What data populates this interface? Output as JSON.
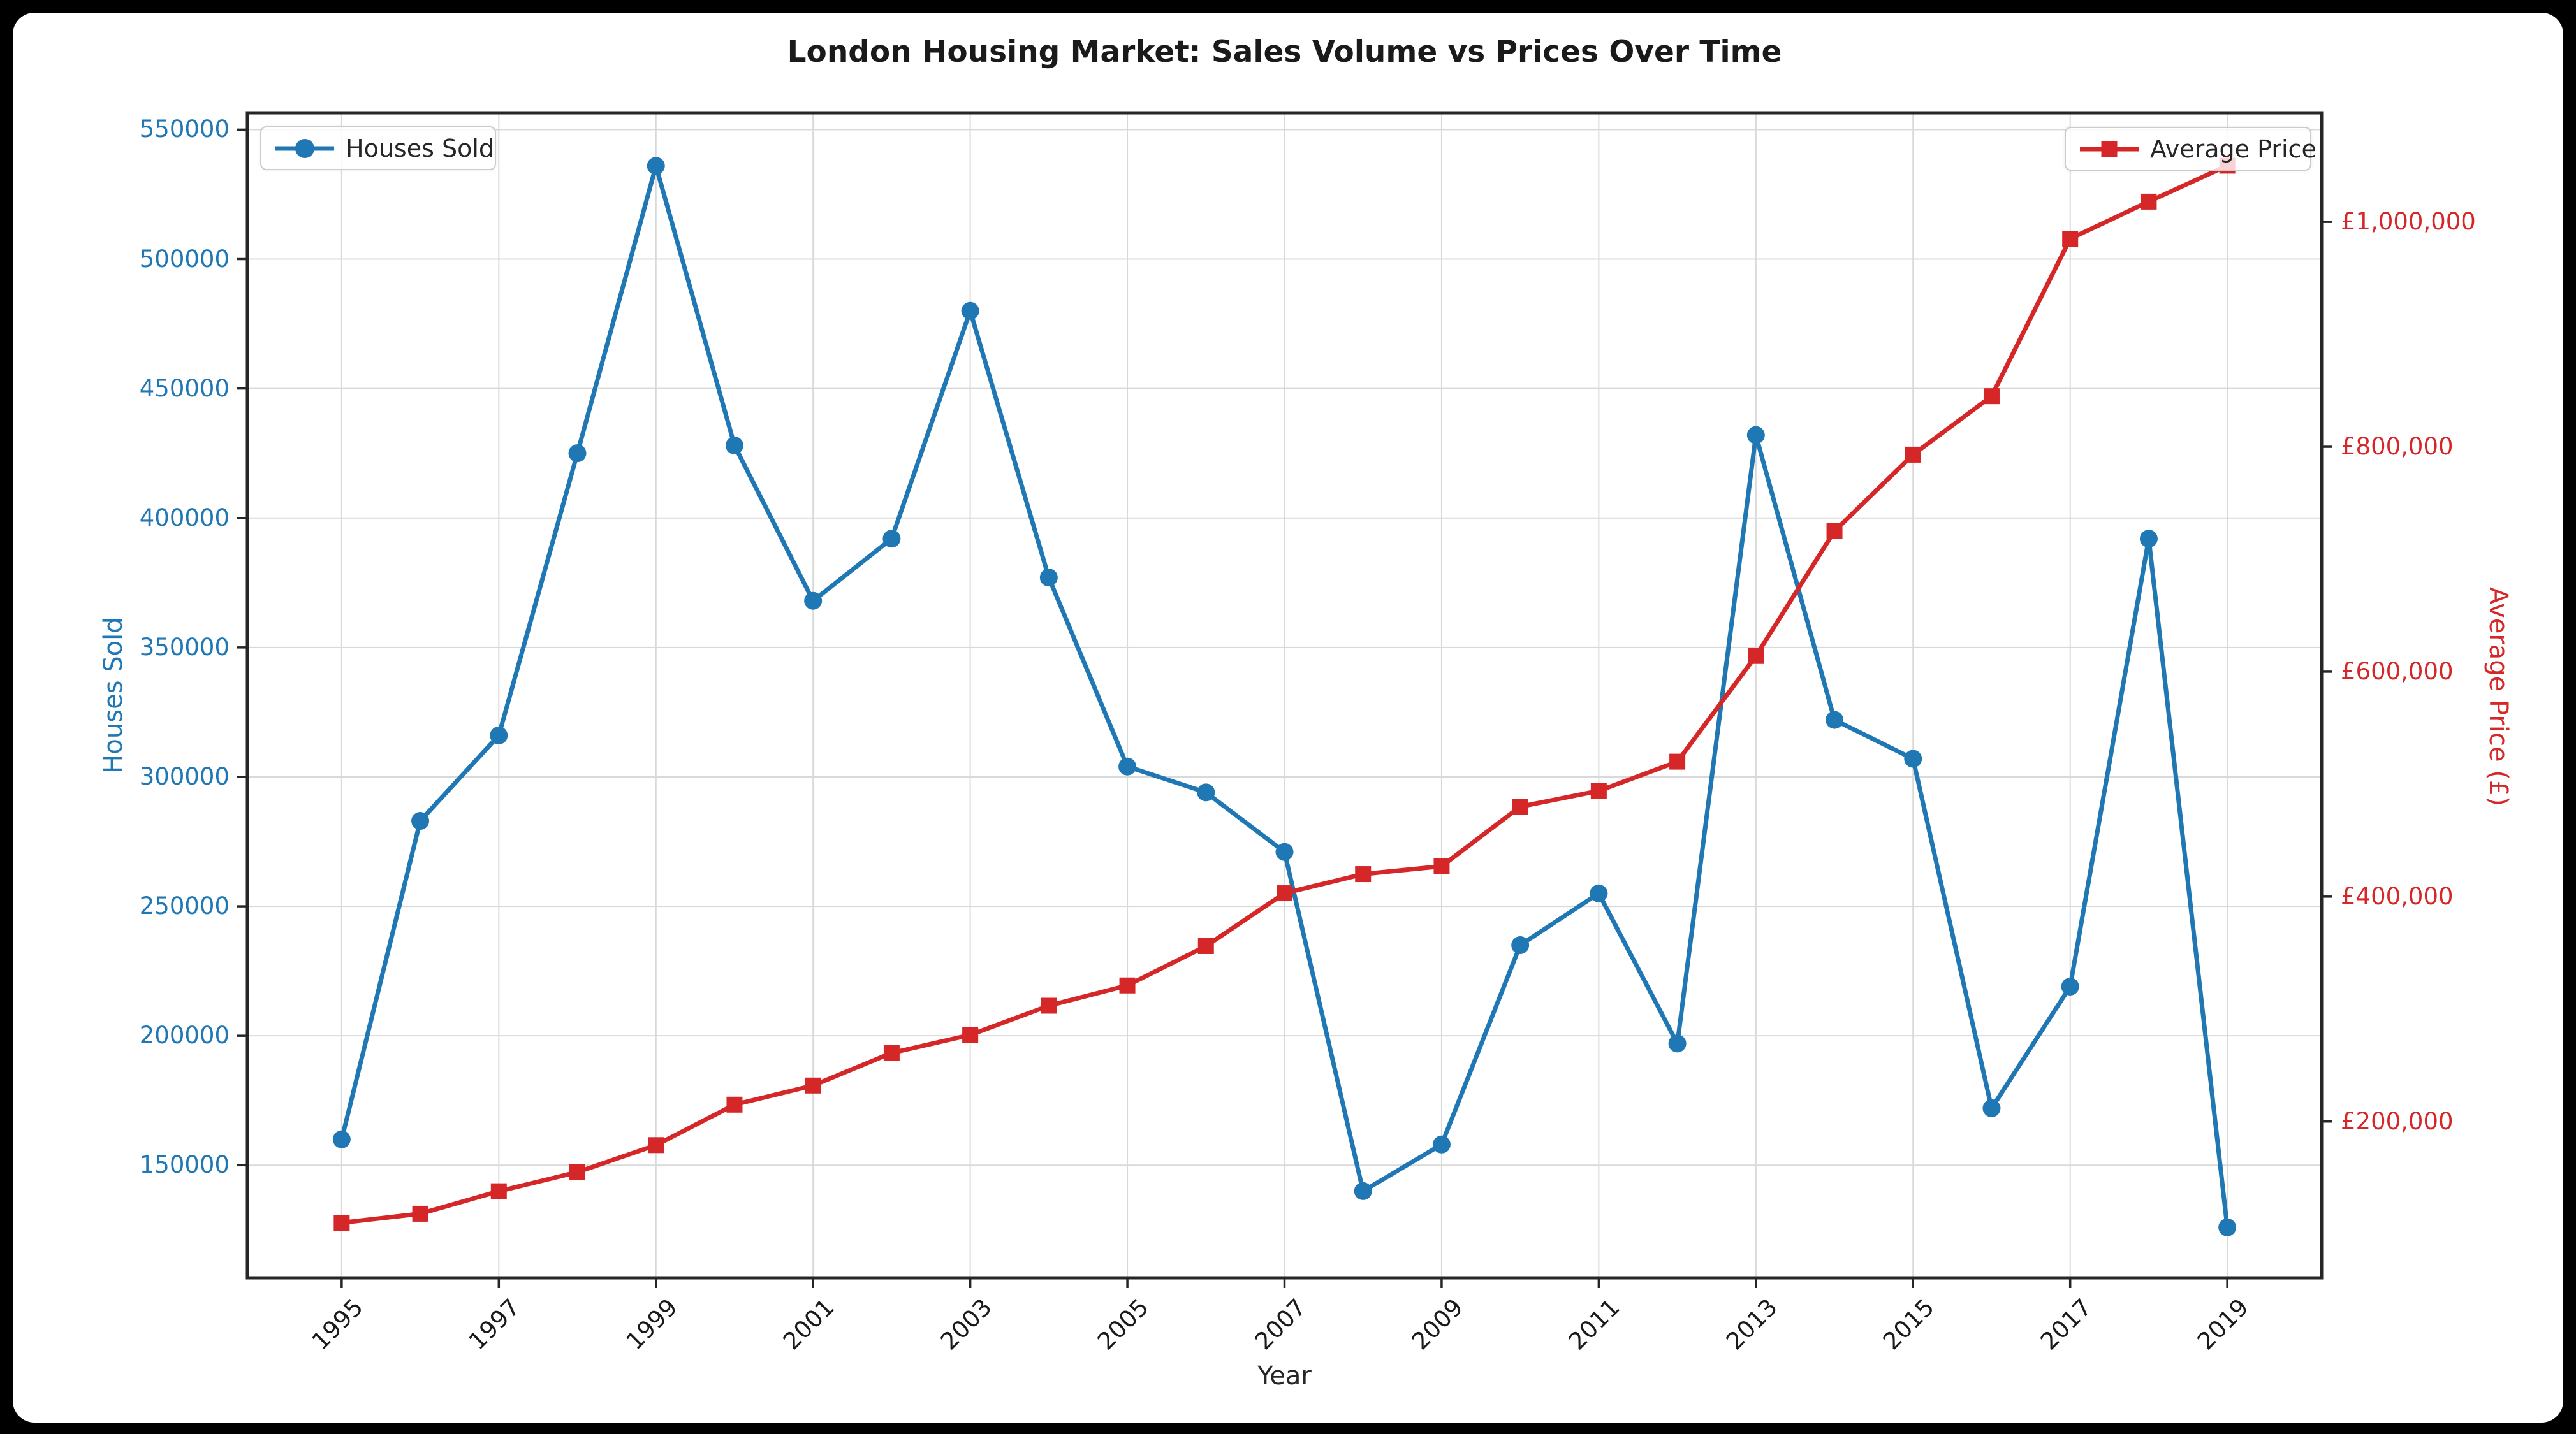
{
  "title": "London Housing Market: Sales Volume vs Prices Over Time",
  "xlabel": "Year",
  "ylabel_left": "Houses Sold",
  "ylabel_right": "Average Price (£)",
  "legend": {
    "houses_sold": "Houses Sold",
    "average_price": "Average Price"
  },
  "colors": {
    "houses_sold": "#1f77b4",
    "average_price": "#d62728",
    "grid": "#d9d9d9",
    "spine": "#262626",
    "left_tick_label": "#1f77b4",
    "right_tick_label": "#d62728",
    "x_tick_label": "#1a1a1a",
    "background": "#000000",
    "figure_background": "#ffffff",
    "title_color": "#1a1a1a"
  },
  "chart_data": {
    "type": "line",
    "title": "London Housing Market: Sales Volume vs Prices Over Time",
    "xlabel": "Year",
    "ylabel_left": "Houses Sold",
    "ylabel_right": "Average Price (£)",
    "grid": true,
    "legend_positions": [
      "upper left",
      "upper right"
    ],
    "x": [
      1995,
      1996,
      1997,
      1998,
      1999,
      2000,
      2001,
      2002,
      2003,
      2004,
      2005,
      2006,
      2007,
      2008,
      2009,
      2010,
      2011,
      2012,
      2013,
      2014,
      2015,
      2016,
      2017,
      2018,
      2019
    ],
    "xticks": [
      1995,
      1997,
      1999,
      2001,
      2003,
      2005,
      2007,
      2009,
      2011,
      2013,
      2015,
      2017,
      2019
    ],
    "xlim": [
      1993.8,
      2020.2
    ],
    "series": [
      {
        "name": "Houses Sold",
        "axis": "left",
        "color": "#1f77b4",
        "marker": "circle",
        "values": [
          160000,
          283000,
          316000,
          425000,
          536000,
          428000,
          368000,
          392000,
          480000,
          377000,
          304000,
          294000,
          271000,
          140000,
          158000,
          235000,
          255000,
          197000,
          432000,
          322000,
          307000,
          172000,
          219000,
          392000,
          126000
        ]
      },
      {
        "name": "Average Price",
        "axis": "right",
        "color": "#d62728",
        "marker": "square",
        "values": [
          110000,
          118000,
          138000,
          155000,
          179000,
          215000,
          232000,
          261000,
          277000,
          303000,
          321000,
          356000,
          403000,
          420000,
          427000,
          480000,
          494000,
          520000,
          614000,
          725000,
          793000,
          845000,
          985000,
          1018000,
          1050000
        ]
      }
    ],
    "yticks_left": [
      150000,
      200000,
      250000,
      300000,
      350000,
      400000,
      450000,
      500000,
      550000
    ],
    "ylim_left": [
      106500,
      556500
    ],
    "yticks_right": [
      200000,
      400000,
      600000,
      800000,
      1000000
    ],
    "ytick_right_prefix": "£",
    "ylim_right": [
      61000,
      1097000
    ]
  }
}
